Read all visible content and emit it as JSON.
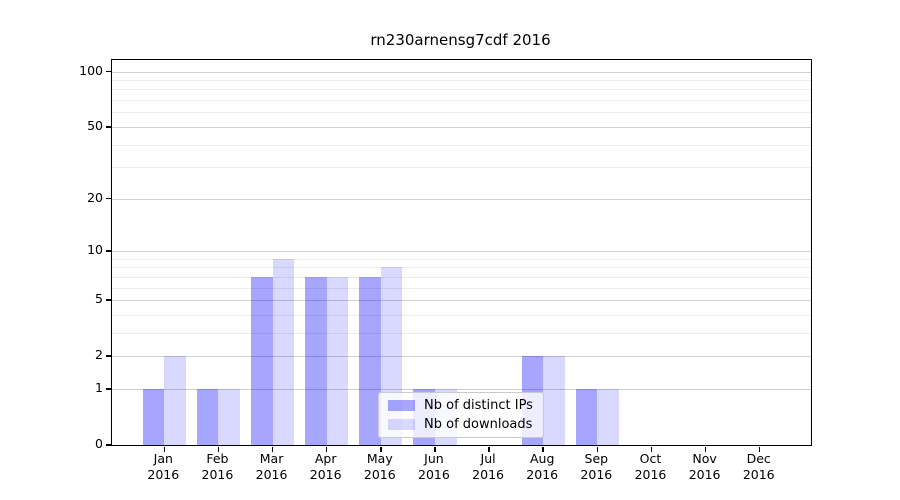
{
  "title": "rn230arnensg7cdf 2016",
  "colors": {
    "distinct_ips_fill": "rgba(0,0,255,0.35)",
    "downloads_fill": "rgba(0,0,255,0.15)",
    "distinct_ips_hex_on_white": "#a6a6ff",
    "downloads_hex_on_white": "#d9d9ff",
    "grid_major": "#cfcfcf",
    "grid_minor": "#ebebeb",
    "axis": "#000000"
  },
  "legend": {
    "items": [
      {
        "label": "Nb of distinct IPs"
      },
      {
        "label": "Nb of downloads"
      }
    ]
  },
  "chart_data": {
    "type": "bar",
    "title": "rn230arnensg7cdf 2016",
    "categories": [
      "Jan 2016",
      "Feb 2016",
      "Mar 2016",
      "Apr 2016",
      "May 2016",
      "Jun 2016",
      "Jul 2016",
      "Aug 2016",
      "Sep 2016",
      "Oct 2016",
      "Nov 2016",
      "Dec 2016"
    ],
    "series": [
      {
        "name": "Nb of distinct IPs",
        "color": "rgba(0,0,255,0.35)",
        "values": [
          1,
          1,
          7,
          7,
          7,
          1,
          0,
          2,
          1,
          0,
          0,
          0
        ]
      },
      {
        "name": "Nb of downloads",
        "color": "rgba(0,0,255,0.15)",
        "values": [
          2,
          1,
          9,
          7,
          8,
          1,
          0,
          2,
          1,
          0,
          0,
          0
        ]
      }
    ],
    "xlabel": "",
    "ylabel": "",
    "yscale": "log1p",
    "yticks": [
      0,
      1,
      2,
      5,
      10,
      20,
      50,
      100
    ],
    "minor_grid_values": [
      3,
      4,
      6,
      7,
      8,
      9,
      30,
      40,
      60,
      70,
      80,
      90
    ],
    "ylim": [
      0,
      116
    ],
    "grid": true,
    "legend_position": "lower center"
  }
}
